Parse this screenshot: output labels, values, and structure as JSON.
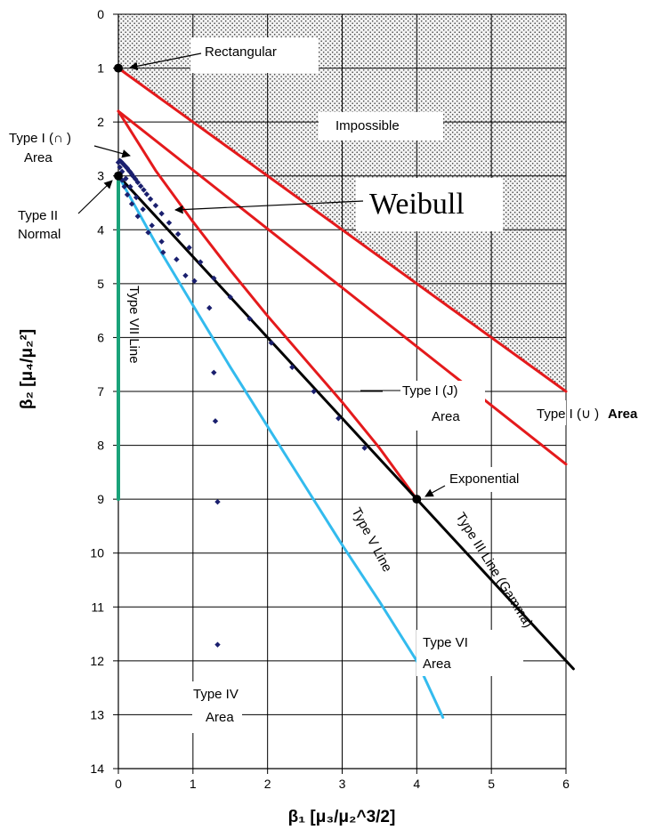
{
  "chart_data": {
    "type": "line",
    "xlabel": "β₁ [μ₃/μ₂^3/2]",
    "ylabel": "β₂ [μ₄/μ₂²]",
    "xlim": [
      0,
      6
    ],
    "ylim": [
      0,
      14
    ],
    "y_inverted": true,
    "x_ticks": [
      "0",
      "1",
      "2",
      "3",
      "4",
      "5",
      "6"
    ],
    "y_ticks": [
      "0",
      "1",
      "2",
      "3",
      "4",
      "5",
      "6",
      "7",
      "8",
      "9",
      "10",
      "11",
      "12",
      "13",
      "14"
    ],
    "grid": true,
    "impossible_region": {
      "label": "Impossible",
      "boundary": [
        [
          0,
          1
        ],
        [
          6,
          7
        ]
      ],
      "pattern": "dotted"
    },
    "lines": [
      {
        "id": "impossible-boundary",
        "color": "#e41a1c",
        "points": [
          [
            0,
            1
          ],
          [
            6,
            7
          ]
        ]
      },
      {
        "id": "type-i-u-line",
        "color": "#e41a1c",
        "points": [
          [
            0,
            1.8
          ],
          [
            6,
            8.35
          ]
        ]
      },
      {
        "id": "type-i-j-curve",
        "color": "#e41a1c",
        "points": [
          [
            0,
            1.8
          ],
          [
            0.5,
            2.9
          ],
          [
            1,
            3.85
          ],
          [
            1.5,
            4.75
          ],
          [
            2,
            5.6
          ],
          [
            2.5,
            6.4
          ],
          [
            3,
            7.2
          ],
          [
            3.5,
            8.05
          ],
          [
            4,
            9
          ]
        ]
      },
      {
        "id": "type-iii-line",
        "color": "#000000",
        "points": [
          [
            0,
            3
          ],
          [
            6.1,
            12.15
          ]
        ]
      },
      {
        "id": "type-v-line",
        "color": "#33bbee",
        "points": [
          [
            0,
            3
          ],
          [
            0.5,
            4.25
          ],
          [
            1,
            5.4
          ],
          [
            1.5,
            6.55
          ],
          [
            2,
            7.65
          ],
          [
            2.5,
            8.75
          ],
          [
            3,
            9.85
          ],
          [
            3.5,
            10.9
          ],
          [
            4,
            12
          ],
          [
            4.35,
            13.05
          ]
        ]
      },
      {
        "id": "type-vii-line",
        "color": "#1aa37a",
        "points": [
          [
            0,
            3
          ],
          [
            0,
            9
          ]
        ]
      }
    ],
    "weibull_points": {
      "color": "#1a1f6e",
      "points": [
        [
          0,
          2.75
        ],
        [
          0.02,
          2.72
        ],
        [
          0.04,
          2.74
        ],
        [
          0.06,
          2.77
        ],
        [
          0.08,
          2.8
        ],
        [
          0.1,
          2.83
        ],
        [
          0.12,
          2.86
        ],
        [
          0.14,
          2.9
        ],
        [
          0.16,
          2.93
        ],
        [
          0.18,
          2.97
        ],
        [
          0.2,
          3.01
        ],
        [
          0.23,
          3.06
        ],
        [
          0.26,
          3.12
        ],
        [
          0.3,
          3.19
        ],
        [
          0.34,
          3.26
        ],
        [
          0.38,
          3.34
        ],
        [
          0.43,
          3.43
        ],
        [
          0.5,
          3.55
        ],
        [
          0.58,
          3.7
        ],
        [
          0.68,
          3.87
        ],
        [
          0.8,
          4.08
        ],
        [
          0.95,
          4.33
        ],
        [
          1.1,
          4.6
        ],
        [
          1.28,
          4.9
        ],
        [
          1.5,
          5.25
        ],
        [
          1.76,
          5.65
        ],
        [
          2.05,
          6.1
        ],
        [
          2.33,
          6.55
        ],
        [
          2.62,
          7.0
        ],
        [
          2.95,
          7.5
        ],
        [
          3.3,
          8.05
        ],
        [
          0.05,
          2.92
        ],
        [
          0.1,
          3.05
        ],
        [
          0.16,
          3.2
        ],
        [
          0.24,
          3.4
        ],
        [
          0.33,
          3.62
        ],
        [
          0.45,
          3.92
        ],
        [
          0.58,
          4.22
        ],
        [
          0.78,
          4.55
        ],
        [
          1.02,
          4.95
        ],
        [
          1.22,
          5.45
        ],
        [
          0.02,
          2.84
        ],
        [
          0.03,
          2.95
        ],
        [
          0.05,
          3.08
        ],
        [
          0.08,
          3.2
        ],
        [
          0.12,
          3.35
        ],
        [
          0.18,
          3.52
        ],
        [
          0.26,
          3.75
        ],
        [
          0.4,
          4.05
        ],
        [
          0.6,
          4.42
        ],
        [
          0.9,
          4.85
        ],
        [
          1.28,
          6.65
        ],
        [
          1.3,
          7.55
        ],
        [
          1.33,
          9.05
        ],
        [
          1.33,
          11.7
        ]
      ]
    },
    "markers": [
      {
        "label": "Rectangular",
        "point": [
          0,
          1
        ]
      },
      {
        "label": "Normal",
        "point": [
          0,
          3
        ]
      },
      {
        "label": "Exponential",
        "point": [
          4,
          9
        ]
      }
    ],
    "annotations": {
      "rectangular": "Rectangular",
      "impossible": "Impossible",
      "weibull": "Weibull",
      "type_i_cap": "Type I (∩ )",
      "type_i_cap_area": "Area",
      "type_ii": "Type II",
      "normal": "Normal",
      "type_vii": "Type VII Line",
      "type_i_j": "Type I (J)",
      "type_i_j_area": "Area",
      "type_i_u": "Type I (∪ )",
      "type_i_u_area": "Area",
      "exponential": "Exponential",
      "type_v": "Type V  Line",
      "type_iii": "Type III Line (Gamma)",
      "type_vi": "Type VI",
      "type_vi_area": "Area",
      "type_iv": "Type IV",
      "type_iv_area": "Area"
    }
  }
}
